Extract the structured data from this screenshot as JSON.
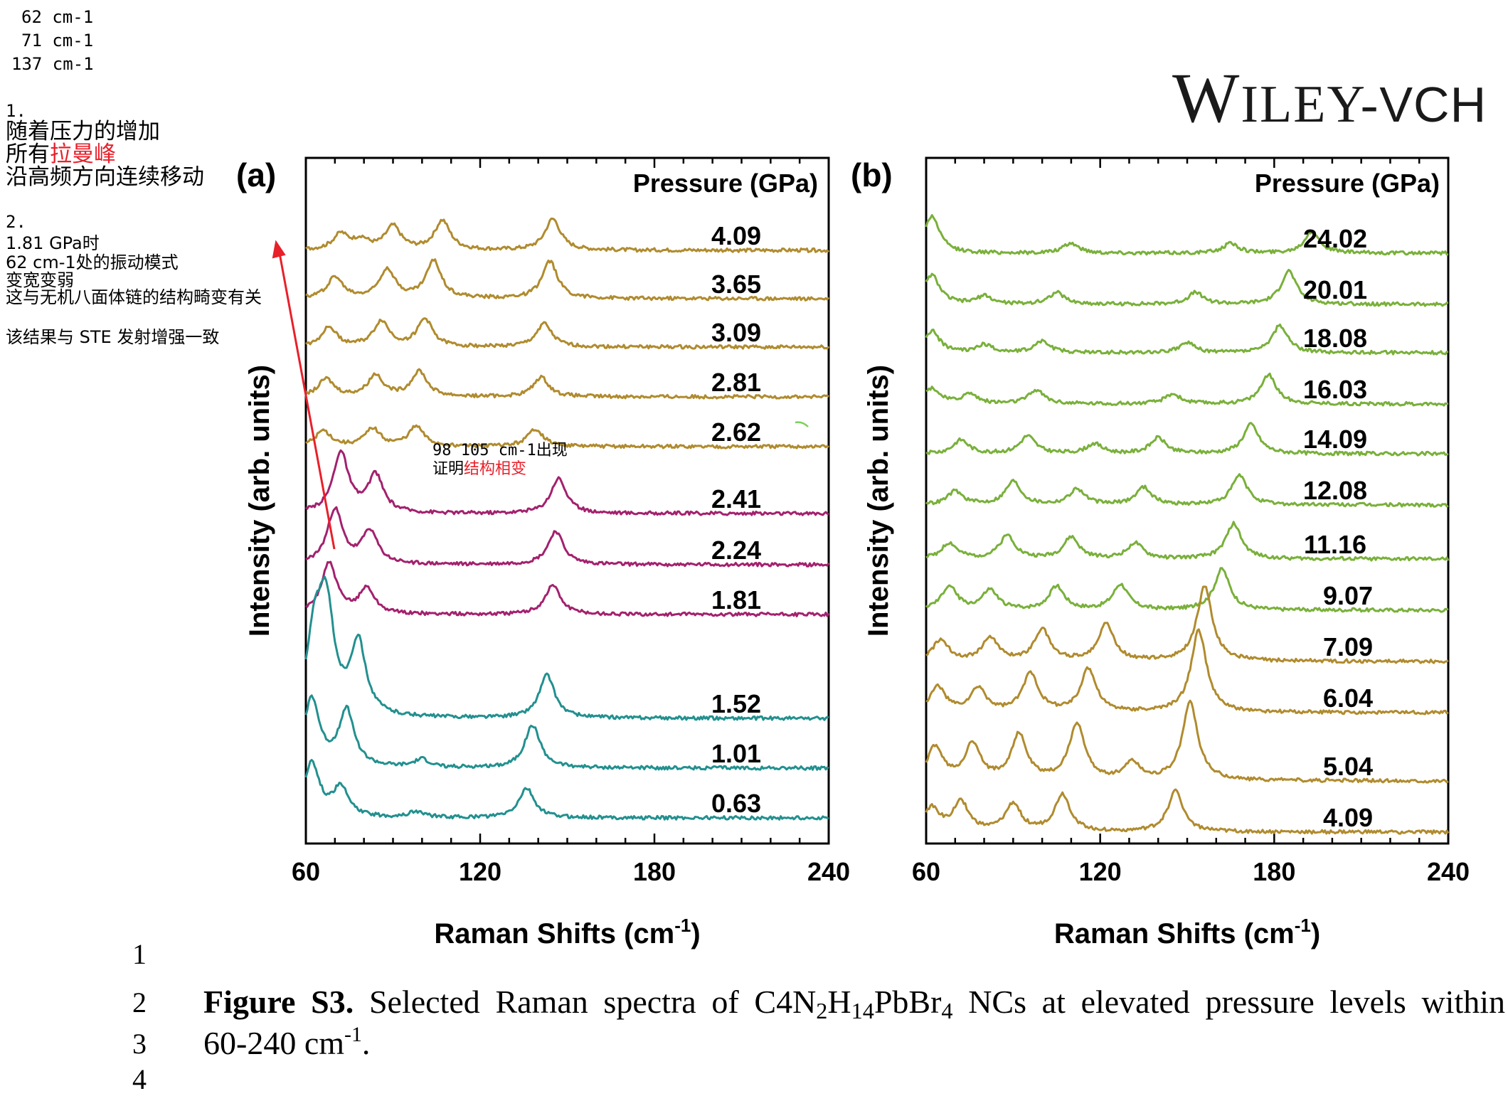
{
  "notes": {
    "lines": [
      "62 cm-1",
      "71 cm-1",
      "137 cm-1"
    ],
    "item1": {
      "num": "1.",
      "l1": "随着压力的增加",
      "l2a": "所有",
      "l2b": "拉曼峰",
      "l3": "沿高频方向连续移动"
    },
    "item2": {
      "num": "2.",
      "l1": "1.81 GPa时",
      "l2": "62 cm-1处的振动模式",
      "l3": "变宽变弱",
      "l4": "这与无机八面体链的结构畸变有关",
      "l5": "该结果与 STE 发射增强一致"
    },
    "phase": {
      "l1": "98 105 cm-1出现",
      "l2a": "证明",
      "l2b": "结构相变"
    }
  },
  "logo": {
    "w": "W",
    "iley": "ILEY",
    "dash": "-",
    "vch": "VCH"
  },
  "chart_data": [
    {
      "type": "line",
      "panel": "(a)",
      "ylabel": "Intensity (arb. units)",
      "legend_title": "Pressure (GPa)",
      "xlim": [
        60,
        240
      ],
      "xticks": [
        "60",
        "120",
        "180",
        "240"
      ],
      "series": [
        {
          "name": "4.09",
          "color": "#b08b2e",
          "peaks": [
            [
              72,
              0.4
            ],
            [
              79,
              0.25
            ],
            [
              90,
              0.6
            ],
            [
              107,
              0.75
            ],
            [
              145,
              0.8
            ]
          ]
        },
        {
          "name": "3.65",
          "color": "#b08b2e",
          "peaks": [
            [
              70,
              0.55
            ],
            [
              88,
              0.75
            ],
            [
              104,
              0.95
            ],
            [
              144,
              0.95
            ]
          ]
        },
        {
          "name": "3.09",
          "color": "#b08b2e",
          "peaks": [
            [
              68,
              0.5
            ],
            [
              86,
              0.65
            ],
            [
              101,
              0.7
            ],
            [
              142,
              0.6
            ]
          ]
        },
        {
          "name": "2.81",
          "color": "#b08b2e",
          "peaks": [
            [
              67,
              0.45
            ],
            [
              84,
              0.55
            ],
            [
              99,
              0.65
            ],
            [
              141,
              0.5
            ]
          ]
        },
        {
          "name": "2.62",
          "color": "#b08b2e",
          "peaks": [
            [
              66,
              0.4
            ],
            [
              83,
              0.45
            ],
            [
              98,
              0.5
            ],
            [
              139,
              0.45
            ]
          ]
        },
        {
          "name": "2.41",
          "color": "#a3216e",
          "peaks": [
            [
              72,
              1.55
            ],
            [
              84,
              0.95
            ],
            [
              147,
              0.9
            ]
          ]
        },
        {
          "name": "2.24",
          "color": "#a3216e",
          "peaks": [
            [
              70,
              1.4
            ],
            [
              82,
              0.85
            ],
            [
              146,
              0.85
            ]
          ]
        },
        {
          "name": "1.81",
          "color": "#a3216e",
          "peaks": [
            [
              68,
              1.3
            ],
            [
              81,
              0.65
            ],
            [
              145,
              0.75
            ]
          ]
        },
        {
          "name": "1.52",
          "color": "#22908f",
          "peaks": [
            [
              63,
              1.9
            ],
            [
              67,
              2.65
            ],
            [
              78,
              1.85
            ],
            [
              143,
              1.1
            ]
          ]
        },
        {
          "name": "1.01",
          "color": "#22908f",
          "peaks": [
            [
              62,
              1.75
            ],
            [
              74,
              1.45
            ],
            [
              100,
              0.2
            ],
            [
              138,
              1.1
            ]
          ]
        },
        {
          "name": "0.63",
          "color": "#22908f",
          "peaks": [
            [
              62,
              1.4
            ],
            [
              72,
              0.75
            ],
            [
              98,
              0.15
            ],
            [
              136,
              0.75
            ]
          ]
        }
      ]
    },
    {
      "type": "line",
      "panel": "(b)",
      "ylabel": "Intensity (arb. units)",
      "legend_title": "Pressure (GPa)",
      "xlim": [
        60,
        240
      ],
      "xticks": [
        "60",
        "120",
        "180",
        "240"
      ],
      "series": [
        {
          "name": "24.02",
          "color": "#79b03a",
          "peaks": [
            [
              62,
              0.95
            ],
            [
              110,
              0.25
            ],
            [
              165,
              0.25
            ],
            [
              193,
              0.55
            ]
          ]
        },
        {
          "name": "20.01",
          "color": "#79b03a",
          "peaks": [
            [
              62,
              0.75
            ],
            [
              80,
              0.2
            ],
            [
              105,
              0.3
            ],
            [
              153,
              0.3
            ],
            [
              185,
              0.85
            ]
          ]
        },
        {
          "name": "18.08",
          "color": "#79b03a",
          "peaks": [
            [
              62,
              0.55
            ],
            [
              80,
              0.2
            ],
            [
              100,
              0.3
            ],
            [
              150,
              0.25
            ],
            [
              182,
              0.7
            ]
          ]
        },
        {
          "name": "16.03",
          "color": "#79b03a",
          "peaks": [
            [
              62,
              0.4
            ],
            [
              75,
              0.25
            ],
            [
              98,
              0.35
            ],
            [
              145,
              0.25
            ],
            [
              178,
              0.75
            ]
          ]
        },
        {
          "name": "14.09",
          "color": "#79b03a",
          "peaks": [
            [
              72,
              0.35
            ],
            [
              95,
              0.45
            ],
            [
              118,
              0.25
            ],
            [
              140,
              0.4
            ],
            [
              172,
              0.75
            ]
          ]
        },
        {
          "name": "12.08",
          "color": "#79b03a",
          "peaks": [
            [
              70,
              0.35
            ],
            [
              90,
              0.6
            ],
            [
              112,
              0.4
            ],
            [
              135,
              0.45
            ],
            [
              168,
              0.75
            ]
          ]
        },
        {
          "name": "11.16",
          "color": "#79b03a",
          "peaks": [
            [
              68,
              0.4
            ],
            [
              88,
              0.6
            ],
            [
              110,
              0.55
            ],
            [
              132,
              0.4
            ],
            [
              166,
              0.9
            ]
          ]
        },
        {
          "name": "9.07",
          "color": "#79b03a",
          "peaks": [
            [
              68,
              0.6
            ],
            [
              82,
              0.5
            ],
            [
              105,
              0.6
            ],
            [
              127,
              0.65
            ],
            [
              162,
              1.05
            ]
          ]
        },
        {
          "name": "7.09",
          "color": "#b08b2e",
          "peaks": [
            [
              65,
              0.55
            ],
            [
              82,
              0.6
            ],
            [
              100,
              0.8
            ],
            [
              122,
              0.95
            ],
            [
              156,
              1.9
            ]
          ]
        },
        {
          "name": "6.04",
          "color": "#b08b2e",
          "peaks": [
            [
              64,
              0.65
            ],
            [
              78,
              0.6
            ],
            [
              96,
              1.0
            ],
            [
              116,
              1.1
            ],
            [
              154,
              2.1
            ]
          ]
        },
        {
          "name": "5.04",
          "color": "#b08b2e",
          "peaks": [
            [
              63,
              0.85
            ],
            [
              76,
              0.9
            ],
            [
              92,
              1.15
            ],
            [
              112,
              1.45
            ],
            [
              131,
              0.45
            ],
            [
              151,
              2.0
            ]
          ]
        },
        {
          "name": "4.09",
          "color": "#b08b2e",
          "peaks": [
            [
              62,
              0.6
            ],
            [
              72,
              0.75
            ],
            [
              90,
              0.7
            ],
            [
              107,
              0.95
            ],
            [
              146,
              1.05
            ]
          ]
        }
      ]
    }
  ],
  "axes": {
    "xlabel": "Raman Shifts (cm",
    "xlabel_sup": "-1",
    "xlabel_end": ")"
  },
  "caption": {
    "title": "Figure S3.",
    "body": " Selected Raman spectra of C",
    "line2": "60-240 cm",
    "line2_sup": "-1",
    "line2_end": "."
  },
  "line_numbers": [
    "1",
    "2",
    "3",
    "4"
  ]
}
